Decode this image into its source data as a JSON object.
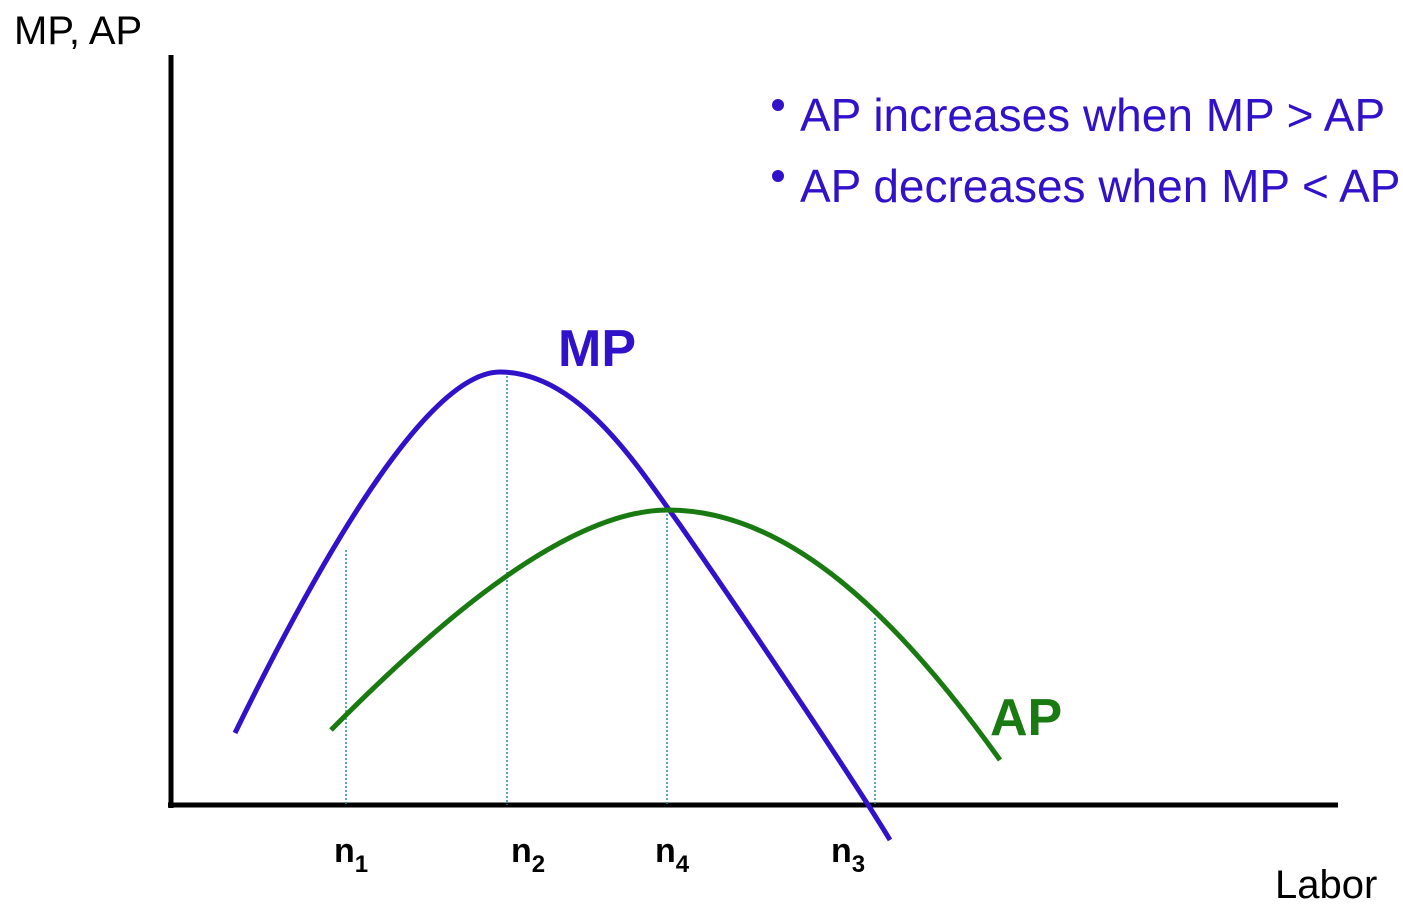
{
  "axes": {
    "y_label": "MP, AP",
    "x_label": "Labor"
  },
  "notes": [
    "AP increases when MP > AP",
    "AP decreases when MP < AP"
  ],
  "curves": [
    {
      "label": "MP",
      "color": "#2f12c9"
    },
    {
      "label": "AP",
      "color": "#1a7a12"
    }
  ],
  "points": [
    {
      "base": "n",
      "sub": "1"
    },
    {
      "base": "n",
      "sub": "2"
    },
    {
      "base": "n",
      "sub": "4"
    },
    {
      "base": "n",
      "sub": "3"
    }
  ]
}
